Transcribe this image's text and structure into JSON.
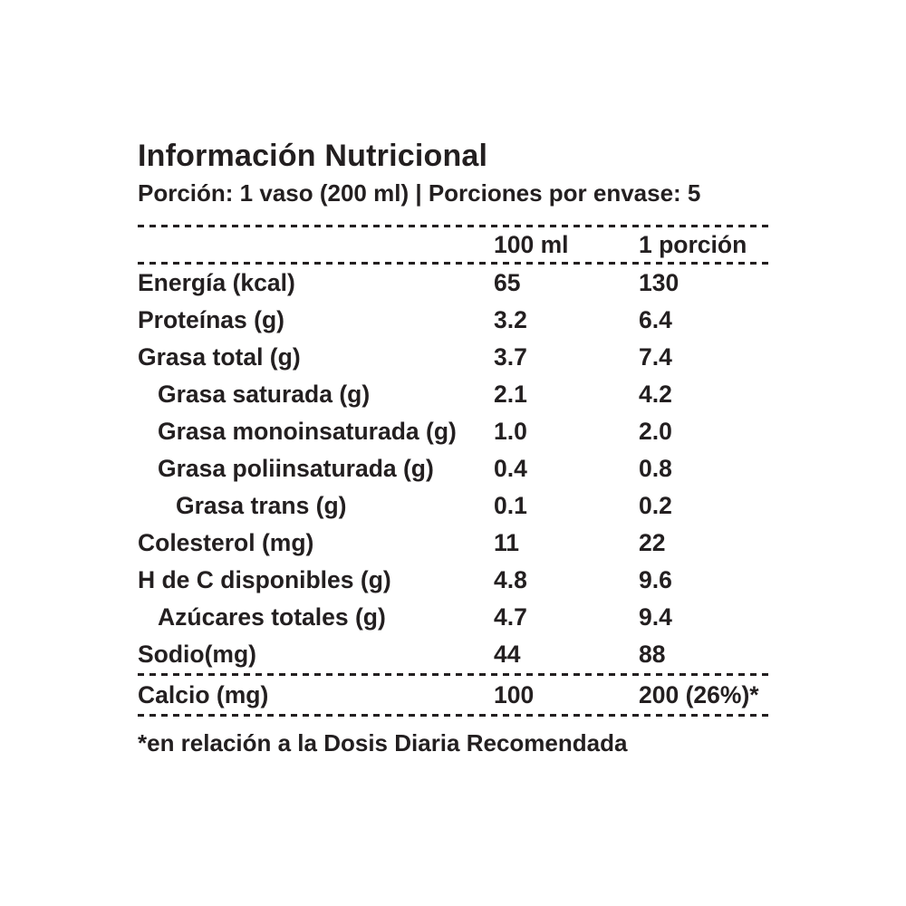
{
  "title": "Información Nutricional",
  "serving_info": "Porción: 1 vaso (200 ml) | Porciones por envase: 5",
  "table": {
    "columns": [
      "100 ml",
      "1 porción"
    ],
    "rows": [
      {
        "label": "Energía (kcal)",
        "indent": 0,
        "per_100ml": "65",
        "per_porcion": "130"
      },
      {
        "label": "Proteínas (g)",
        "indent": 0,
        "per_100ml": "3.2",
        "per_porcion": "6.4"
      },
      {
        "label": "Grasa total (g)",
        "indent": 0,
        "per_100ml": "3.7",
        "per_porcion": "7.4"
      },
      {
        "label": "Grasa saturada (g)",
        "indent": 1,
        "per_100ml": "2.1",
        "per_porcion": "4.2"
      },
      {
        "label": "Grasa monoinsaturada (g)",
        "indent": 1,
        "per_100ml": "1.0",
        "per_porcion": "2.0"
      },
      {
        "label": "Grasa poliinsaturada (g)",
        "indent": 1,
        "per_100ml": "0.4",
        "per_porcion": "0.8"
      },
      {
        "label": "Grasa trans (g)",
        "indent": 2,
        "per_100ml": "0.1",
        "per_porcion": "0.2"
      },
      {
        "label": "Colesterol (mg)",
        "indent": 0,
        "per_100ml": "11",
        "per_porcion": "22"
      },
      {
        "label": "H de C disponibles (g)",
        "indent": 0,
        "per_100ml": "4.8",
        "per_porcion": "9.6"
      },
      {
        "label": "Azúcares totales (g)",
        "indent": 1,
        "per_100ml": "4.7",
        "per_porcion": "9.4"
      },
      {
        "label": "Sodio(mg)",
        "indent": 0,
        "per_100ml": "44",
        "per_porcion": "88"
      },
      {
        "label": "Calcio (mg)",
        "indent": 0,
        "per_100ml": "100",
        "per_porcion": "200 (26%)*",
        "separator_above": true
      }
    ]
  },
  "footnote": "*en relación a la Dosis Diaria Recomendada",
  "colors": {
    "text": "#231f20",
    "background": "#ffffff"
  }
}
